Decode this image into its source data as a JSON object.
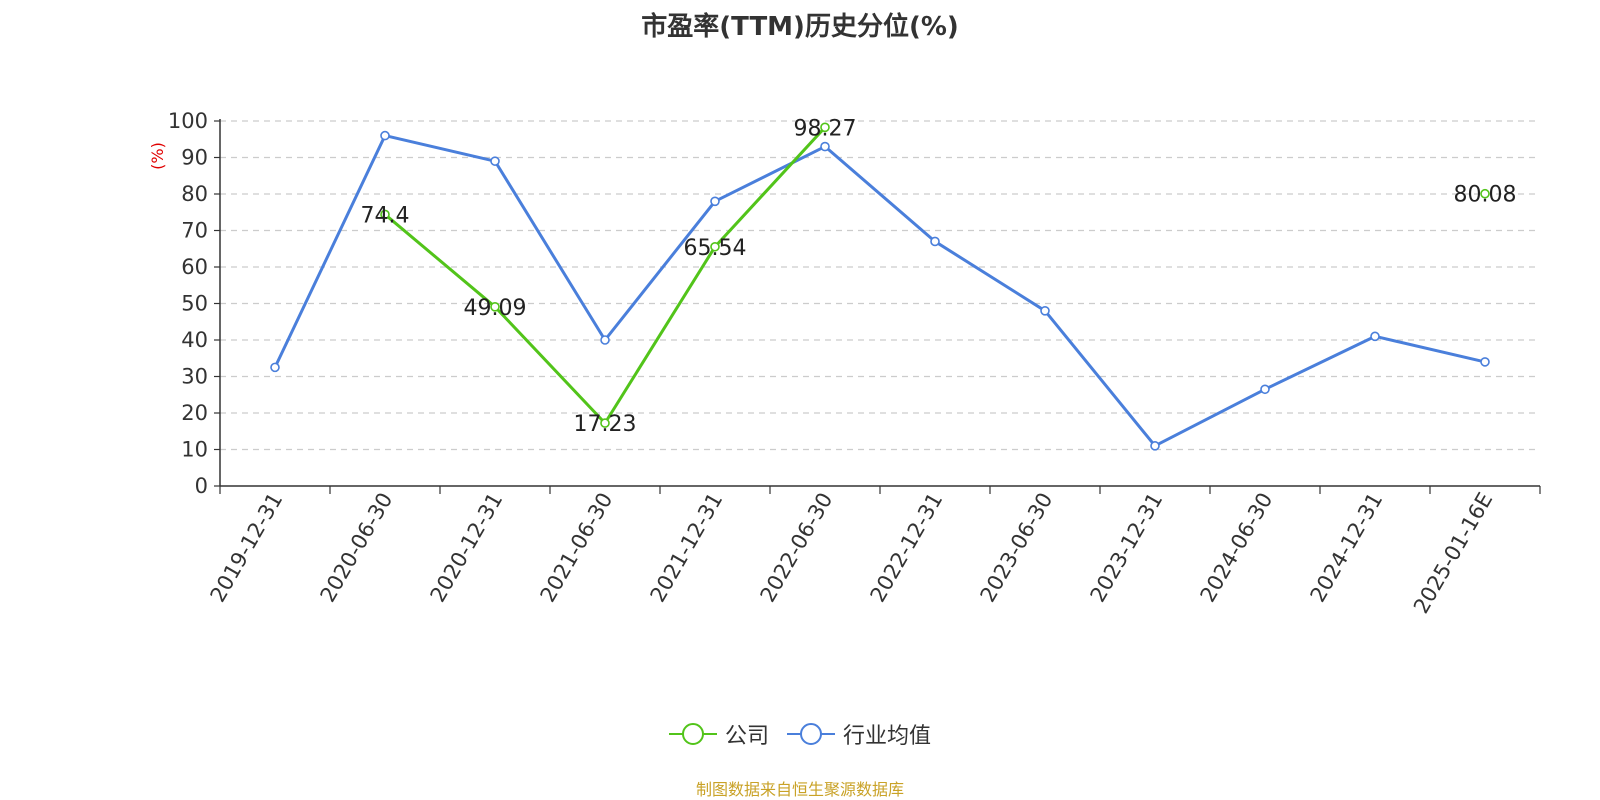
{
  "chart_data": {
    "type": "line",
    "title": "市盈率(TTM)历史分位(%)",
    "ylabel": "(%)",
    "ylim": [
      0,
      100
    ],
    "yticks": [
      0,
      10,
      20,
      30,
      40,
      50,
      60,
      70,
      80,
      90,
      100
    ],
    "grid": true,
    "legend_position": "bottom",
    "categories": [
      "2019-12-31",
      "2020-06-30",
      "2020-12-31",
      "2021-06-30",
      "2021-12-31",
      "2022-06-30",
      "2022-12-31",
      "2023-06-30",
      "2023-12-31",
      "2024-06-30",
      "2024-12-31",
      "2025-01-16E"
    ],
    "series": [
      {
        "name": "公司",
        "color": "#52c41a",
        "values": [
          null,
          74.4,
          49.09,
          17.23,
          65.54,
          98.27,
          null,
          null,
          null,
          null,
          null,
          80.08
        ],
        "labels": [
          "",
          "74.4",
          "49.09",
          "17.23",
          "65.54",
          "98.27",
          "",
          "",
          "",
          "",
          "",
          "80.08"
        ]
      },
      {
        "name": "行业均值",
        "color": "#4a7fdb",
        "values": [
          32.5,
          96,
          89,
          40,
          78,
          93,
          67,
          48,
          11,
          26.5,
          41,
          34
        ]
      }
    ]
  },
  "source_note": "制图数据来自恒生聚源数据库"
}
